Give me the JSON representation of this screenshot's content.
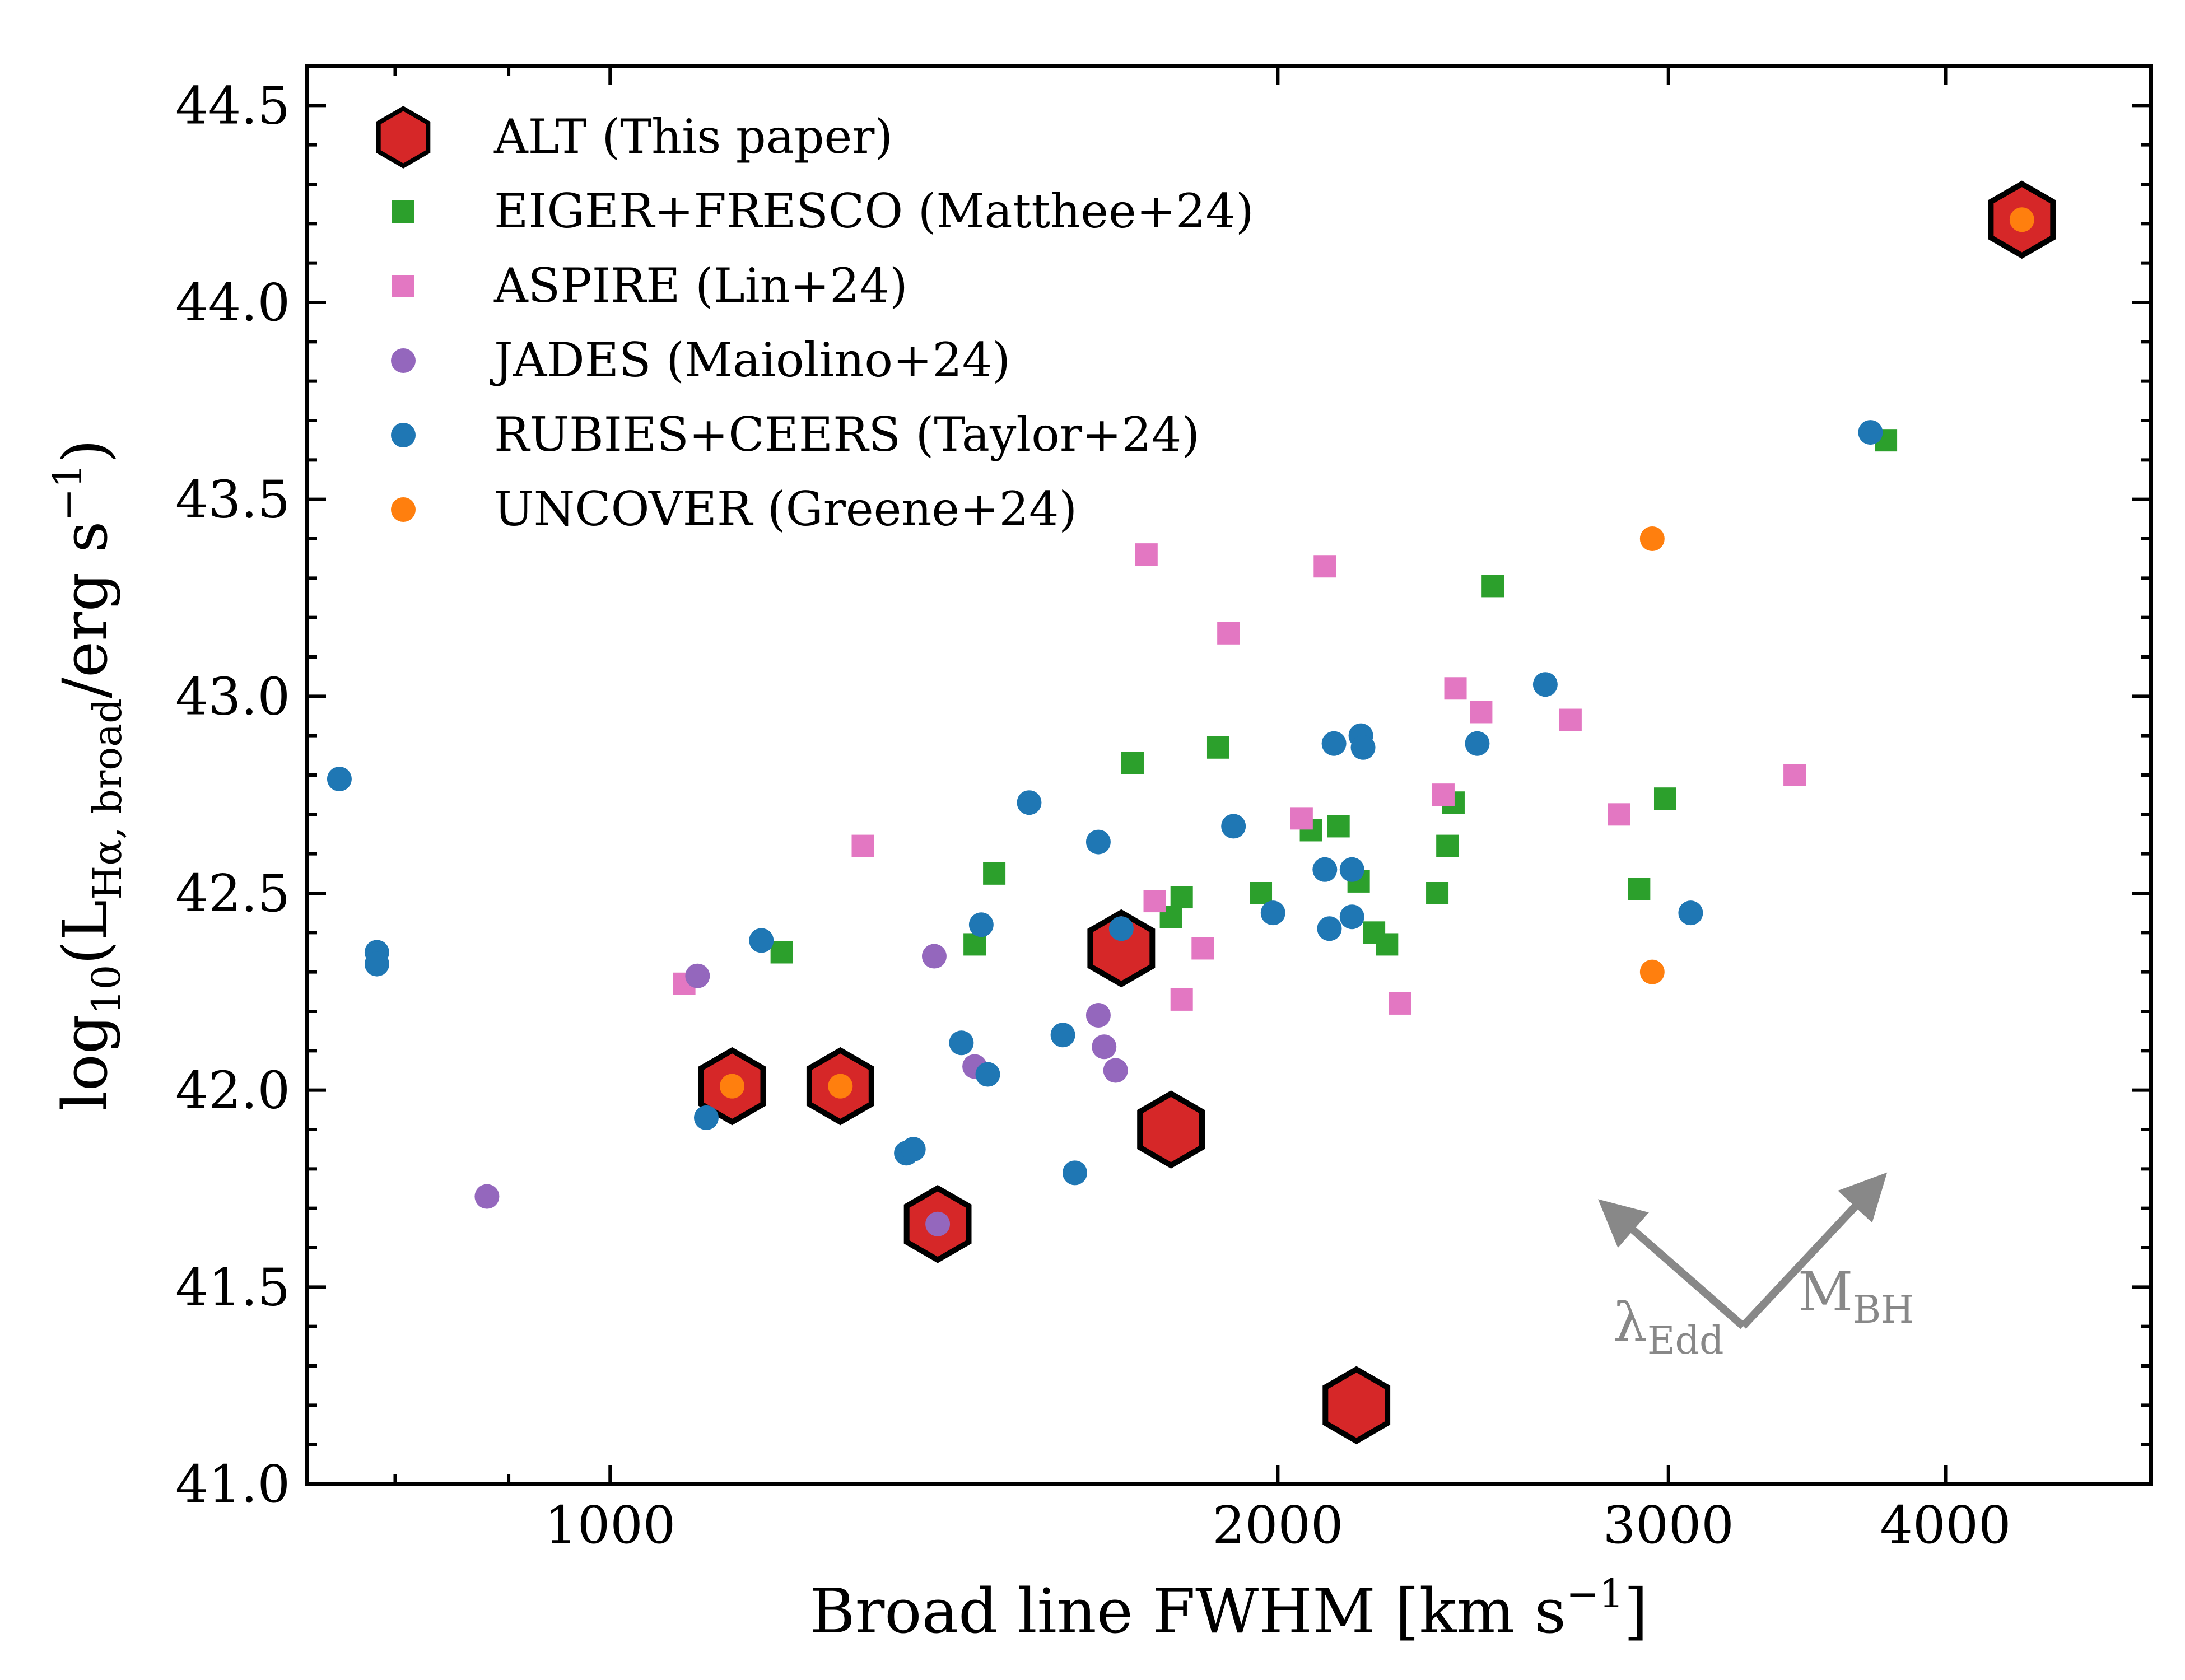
{
  "chart_data": {
    "type": "scatter",
    "xlabel": "Broad line FWHM [km s",
    "xlabel_sup": "−1",
    "xlabel_end": "]",
    "ylabel": {
      "pre": "log",
      "sub1": "10",
      "mid": "(L",
      "sub2": "Hα, broad",
      "post": "/erg s",
      "sup": "−1",
      "end": ")"
    },
    "x_scale": "log",
    "xlim": [
      730,
      4950
    ],
    "ylim": [
      41.0,
      44.6
    ],
    "x_ticks": [
      1000,
      2000,
      3000,
      4000
    ],
    "x_tick_labels": [
      "1000",
      "2000",
      "3000",
      "4000"
    ],
    "y_ticks": [
      41.0,
      41.5,
      42.0,
      42.5,
      43.0,
      43.5,
      44.0,
      44.5
    ],
    "y_tick_labels": [
      "41.0",
      "41.5",
      "42.0",
      "42.5",
      "43.0",
      "43.5",
      "44.0",
      "44.5"
    ],
    "grid": false,
    "legend_position": "top-left",
    "series": [
      {
        "name": "ALT (This paper)",
        "marker": "hexagon",
        "color": "#d62728",
        "edge": "#000000",
        "points": [
          [
            1135,
            42.01
          ],
          [
            1270,
            42.01
          ],
          [
            1405,
            41.66
          ],
          [
            1700,
            42.36
          ],
          [
            1790,
            41.9
          ],
          [
            2170,
            41.2
          ],
          [
            4330,
            44.21
          ]
        ]
      },
      {
        "name": "EIGER+FRESCO (Matthee+24)",
        "marker": "square",
        "color": "#2ca02c",
        "points": [
          [
            1195,
            42.35
          ],
          [
            1460,
            42.37
          ],
          [
            1490,
            42.55
          ],
          [
            1720,
            42.83
          ],
          [
            1790,
            42.44
          ],
          [
            1810,
            42.49
          ],
          [
            1880,
            42.87
          ],
          [
            1965,
            42.5
          ],
          [
            2070,
            42.66
          ],
          [
            2130,
            42.67
          ],
          [
            2175,
            42.53
          ],
          [
            2210,
            42.4
          ],
          [
            2240,
            42.37
          ],
          [
            2360,
            42.5
          ],
          [
            2385,
            42.62
          ],
          [
            2400,
            42.73
          ],
          [
            2500,
            43.28
          ],
          [
            2910,
            42.51
          ],
          [
            2990,
            42.74
          ],
          [
            3760,
            43.65
          ]
        ]
      },
      {
        "name": "ASPIRE (Lin+24)",
        "marker": "square",
        "color": "#e377c2",
        "points": [
          [
            1080,
            42.27
          ],
          [
            1300,
            42.62
          ],
          [
            1745,
            43.36
          ],
          [
            1760,
            42.48
          ],
          [
            1810,
            42.23
          ],
          [
            1850,
            42.36
          ],
          [
            1900,
            43.16
          ],
          [
            2050,
            42.69
          ],
          [
            2100,
            43.33
          ],
          [
            2270,
            42.22
          ],
          [
            2375,
            42.75
          ],
          [
            2405,
            43.02
          ],
          [
            2470,
            42.96
          ],
          [
            2710,
            42.94
          ],
          [
            2850,
            42.7
          ],
          [
            3420,
            42.8
          ]
        ]
      },
      {
        "name": "JADES (Maiolino+24)",
        "marker": "circle",
        "color": "#9467bd",
        "points": [
          [
            880,
            41.73
          ],
          [
            1095,
            42.29
          ],
          [
            1400,
            42.34
          ],
          [
            1405,
            41.66
          ],
          [
            1460,
            42.06
          ],
          [
            1660,
            42.19
          ],
          [
            1670,
            42.11
          ],
          [
            1690,
            42.05
          ]
        ]
      },
      {
        "name": "RUBIES+CEERS (Taylor+24)",
        "marker": "circle",
        "color": "#1f77b4",
        "points": [
          [
            755,
            42.79
          ],
          [
            785,
            42.35
          ],
          [
            785,
            42.32
          ],
          [
            1105,
            41.93
          ],
          [
            1170,
            42.38
          ],
          [
            1360,
            41.84
          ],
          [
            1370,
            41.85
          ],
          [
            1440,
            42.12
          ],
          [
            1470,
            42.42
          ],
          [
            1480,
            42.04
          ],
          [
            1545,
            42.73
          ],
          [
            1600,
            42.14
          ],
          [
            1620,
            41.79
          ],
          [
            1660,
            42.63
          ],
          [
            1700,
            42.41
          ],
          [
            1910,
            42.67
          ],
          [
            1990,
            42.45
          ],
          [
            2100,
            42.56
          ],
          [
            2110,
            42.41
          ],
          [
            2120,
            42.88
          ],
          [
            2160,
            42.56
          ],
          [
            2160,
            42.44
          ],
          [
            2180,
            42.9
          ],
          [
            2185,
            42.87
          ],
          [
            2460,
            42.88
          ],
          [
            2640,
            43.03
          ],
          [
            3070,
            42.45
          ],
          [
            3700,
            43.67
          ]
        ]
      },
      {
        "name": "UNCOVER (Greene+24)",
        "marker": "circle",
        "color": "#ff7f0e",
        "points": [
          [
            1135,
            42.01
          ],
          [
            1270,
            42.01
          ],
          [
            2950,
            43.4
          ],
          [
            2950,
            42.3
          ],
          [
            4330,
            44.21
          ]
        ]
      }
    ],
    "annotations": {
      "left_arrow_label": "λ",
      "left_arrow_sub": "Edd",
      "right_arrow_label": "M",
      "right_arrow_sub": "BH",
      "arrow_color": "#888888"
    }
  }
}
